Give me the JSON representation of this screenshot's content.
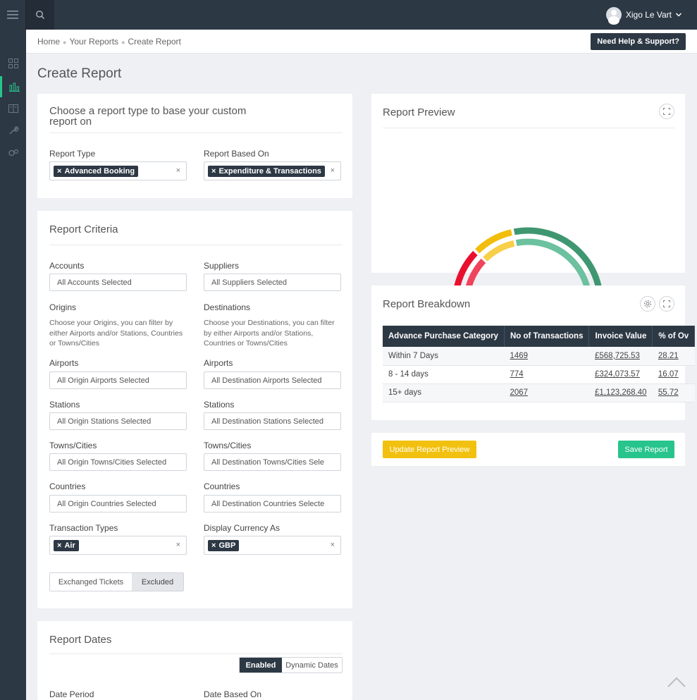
{
  "header": {
    "user_name": "Xigo Le Vart"
  },
  "breadcrumb": {
    "items": [
      "Home",
      "Your Reports",
      "Create Report"
    ]
  },
  "help_button": "Need Help & Support?",
  "page_title": "Create Report",
  "report_type_panel": {
    "title": "Choose a report type to base your custom report on",
    "report_type_label": "Report Type",
    "report_type_value": "Advanced Booking",
    "based_on_label": "Report Based On",
    "based_on_value": "Expenditure & Transactions"
  },
  "criteria": {
    "title": "Report Criteria",
    "accounts_label": "Accounts",
    "accounts_value": "All Accounts Selected",
    "suppliers_label": "Suppliers",
    "suppliers_value": "All Suppliers Selected",
    "origins_label": "Origins",
    "origins_help": "Choose your Origins, you can filter by either Airports and/or Stations, Countries or Towns/Cities",
    "destinations_label": "Destinations",
    "destinations_help": "Choose your Destinations, you can filter by either Airports and/or Stations, Countries or Towns/Cities",
    "airports_label": "Airports",
    "origin_airports": "All Origin Airports Selected",
    "dest_airports": "All Destination Airports Selected",
    "stations_label": "Stations",
    "origin_stations": "All Origin Stations Selected",
    "dest_stations": "All Destination Stations Selected",
    "towns_label": "Towns/Cities",
    "origin_towns": "All Origin Towns/Cities Selected",
    "dest_towns": "All Destination Towns/Cities Sele",
    "countries_label": "Countries",
    "origin_countries": "All Origin Countries Selected",
    "dest_countries": "All Destination Countries Selecte",
    "transaction_types_label": "Transaction Types",
    "transaction_types_value": "Air",
    "currency_label": "Display Currency As",
    "currency_value": "GBP",
    "exchanged_label": "Exchanged Tickets",
    "exchanged_value": "Excluded"
  },
  "dates": {
    "title": "Report Dates",
    "enabled": "Enabled",
    "dynamic": "Dynamic Dates",
    "period_label": "Date Period",
    "based_on_label": "Date Based On"
  },
  "preview": {
    "title": "Report Preview"
  },
  "breakdown": {
    "title": "Report Breakdown",
    "columns": [
      "Advance Purchase Category",
      "No of Transactions",
      "Invoice Value",
      "% of Ov"
    ],
    "rows": [
      [
        "Within 7 Days",
        "1469",
        "£568,725.53",
        "28.21"
      ],
      [
        "8 - 14 days",
        "774",
        "£324,073.57",
        "16.07"
      ],
      [
        "15+ days",
        "2067",
        "£1,123,268.40",
        "55.72"
      ]
    ]
  },
  "actions": {
    "update": "Update Report Preview",
    "save": "Save Report"
  },
  "chart_data": {
    "type": "gauge",
    "series": [
      {
        "values": [
          28.21,
          16.07,
          55.72
        ],
        "colors": [
          "#e8102e",
          "#f2bd0b",
          "#3f9771"
        ]
      },
      {
        "values": [
          28.21,
          16.07,
          55.72
        ],
        "colors": [
          "#f0435c",
          "#f8cf48",
          "#6cc19f"
        ]
      }
    ],
    "colors": {
      "accent": "#27c48b",
      "update_button": "#f2c10f",
      "save_button": "#27c48b",
      "nav": "#2d3845"
    }
  }
}
